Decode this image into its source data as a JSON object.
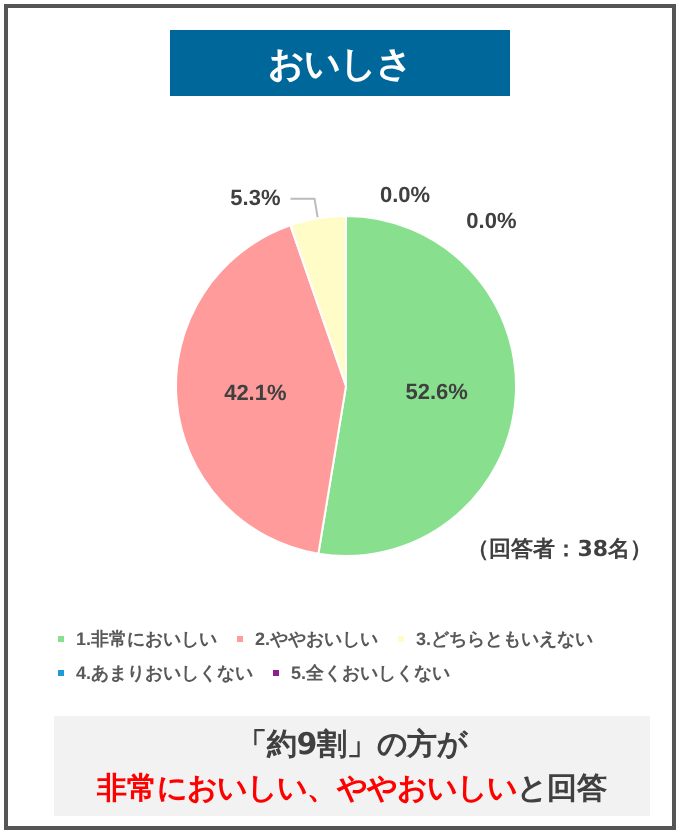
{
  "chart_data": {
    "type": "pie",
    "title": "おいしさ",
    "categories": [
      "1.非常においしい",
      "2.ややおいしい",
      "3.どちらともいえない",
      "4.あまりおいしくない",
      "5.全くおいしくない"
    ],
    "values": [
      52.6,
      42.1,
      5.3,
      0.0,
      0.0
    ],
    "colors": [
      "#88e08e",
      "#ff9b9b",
      "#fffcc8",
      "#1e9bd7",
      "#8e1e8e"
    ],
    "value_labels": [
      "52.6%",
      "42.1%",
      "5.3%",
      "0.0%",
      "0.0%"
    ],
    "legend": "bottom",
    "annotations": [
      "（回答者：38名）",
      "「約9割」の方が",
      "非常においしい、ややおいしい",
      "と回答"
    ]
  }
}
